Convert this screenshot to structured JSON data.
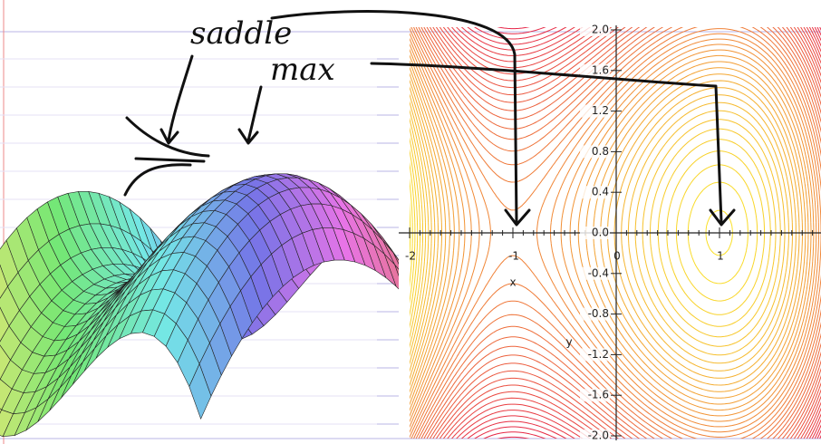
{
  "annotations": {
    "saddle": "saddle",
    "max": "max"
  },
  "contour_plot": {
    "x_axis_label": "x",
    "y_axis_label": "y",
    "x_tick_labels": [
      "-2",
      "-1",
      "0",
      "1"
    ],
    "y_tick_labels": [
      "2.0",
      "1.6",
      "1.2",
      "0.8",
      "0.4",
      "0.0",
      "-0.4",
      "-0.8",
      "-1.2",
      "-1.6",
      "-2.0"
    ]
  }
}
